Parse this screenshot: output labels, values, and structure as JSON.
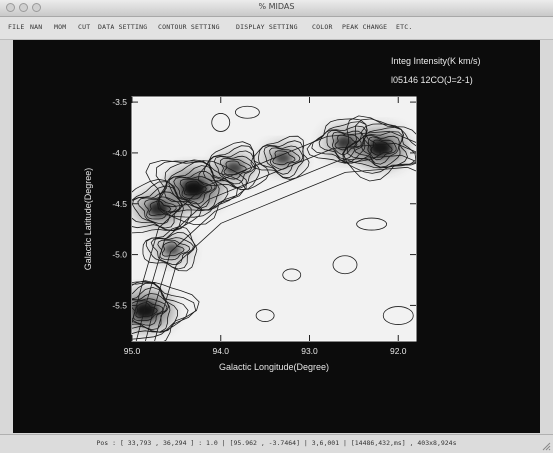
{
  "window": {
    "title": "% MIDAS"
  },
  "menu": [
    {
      "label": "FILE"
    },
    {
      "label": "NAN"
    },
    {
      "label": "MOM"
    },
    {
      "label": "CUT"
    },
    {
      "label": "DATA SETTING"
    },
    {
      "label": "CONTOUR SETTING"
    },
    {
      "label": "DISPLAY SETTING"
    },
    {
      "label": "COLOR"
    },
    {
      "label": "PEAK CHANGE"
    },
    {
      "label": "ETC."
    }
  ],
  "plot": {
    "label_line1": "Integ Intensity(K km/s)",
    "label_line2": "l05146 12CO(J=2-1)",
    "xlabel": "Galactic Longitude(Degree)",
    "ylabel": "Galactic Latitude(Degree)",
    "x_ticks": [
      "95.0",
      "94.0",
      "93.0",
      "92.0"
    ],
    "y_ticks": [
      "-3.5",
      "-4.0",
      "-4.5",
      "-5.0",
      "-5.5"
    ]
  },
  "chart_data": {
    "type": "heatmap",
    "xlabel": "Galactic Longitude(Degree)",
    "ylabel": "Galactic Latitude(Degree)",
    "xlim": [
      95.0,
      91.8
    ],
    "ylim": [
      -5.85,
      -3.45
    ],
    "x_ticks": [
      95.0,
      94.0,
      93.0,
      92.0
    ],
    "y_ticks": [
      -3.5,
      -4.0,
      -4.5,
      -5.0,
      -5.5
    ],
    "peaks": [
      {
        "l": 94.3,
        "b": -4.35,
        "strength": 1.0
      },
      {
        "l": 94.7,
        "b": -4.55,
        "strength": 0.7
      },
      {
        "l": 94.55,
        "b": -4.95,
        "strength": 0.35
      },
      {
        "l": 93.85,
        "b": -4.15,
        "strength": 0.45
      },
      {
        "l": 93.3,
        "b": -4.05,
        "strength": 0.4
      },
      {
        "l": 92.6,
        "b": -3.9,
        "strength": 0.55
      },
      {
        "l": 92.2,
        "b": -3.95,
        "strength": 0.9
      },
      {
        "l": 94.85,
        "b": -5.55,
        "strength": 0.95
      }
    ],
    "grid": false
  },
  "status": {
    "text": "Pos : [ 33,793 , 36,294 ] : 1.0 | [95.962 , -3.7464] | 3,6,001 | [14486,432,ms] , 403x8,924s"
  }
}
